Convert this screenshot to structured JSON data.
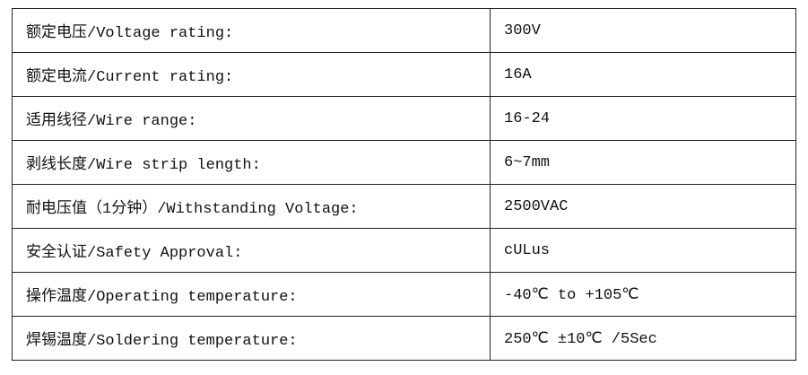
{
  "rows": [
    {
      "label": "额定电压/Voltage rating:",
      "value": "300V"
    },
    {
      "label": "额定电流/Current rating:",
      "value": "16A"
    },
    {
      "label": "适用线径/Wire range:",
      "value": "16-24"
    },
    {
      "label": "剥线长度/Wire strip length:",
      "value": "6~7mm"
    },
    {
      "label": "耐电压值（1分钟）/Withstanding Voltage:",
      "value": "2500VAC"
    },
    {
      "label": "安全认证/Safety Approval:",
      "value": "cULus"
    },
    {
      "label": "操作温度/Operating temperature:",
      "value": "-40℃ to +105℃"
    },
    {
      "label": "焊锡温度/Soldering temperature:",
      "value": "250℃ ±10℃ /5Sec"
    }
  ]
}
